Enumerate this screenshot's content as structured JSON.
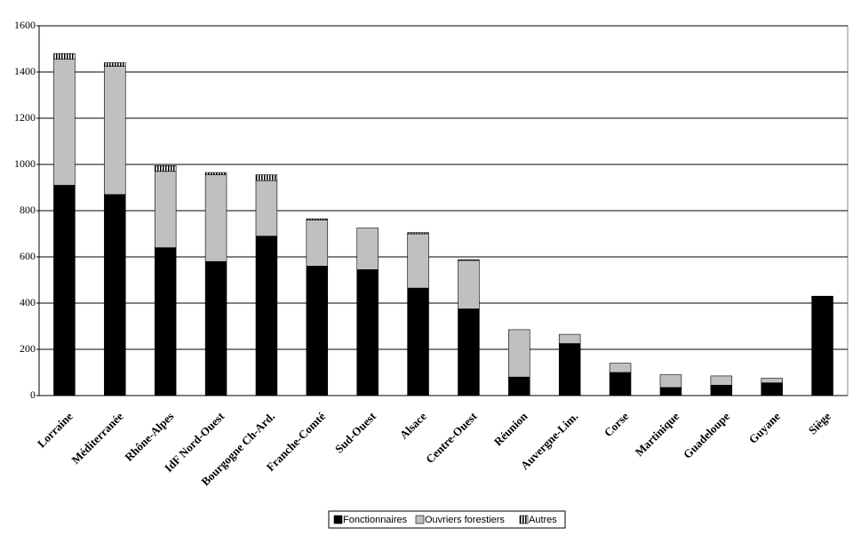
{
  "chart_data": {
    "type": "stacked-bar",
    "categories": [
      "Lorraine",
      "Méditerranée",
      "Rhône-Alpes",
      "IdF Nord-Ouest",
      "Bourgogne Ch-Ard.",
      "Franche-Comté",
      "Sud-Ouest",
      "Alsace",
      "Centre-Ouest",
      "Réunion",
      "Auvergne-Lim.",
      "Corse",
      "Martinique",
      "Guadeloupe",
      "Guyane",
      "Siège"
    ],
    "series": [
      {
        "name": "Fonctionnaires",
        "color": "#000000",
        "values": [
          910,
          870,
          640,
          580,
          690,
          560,
          545,
          465,
          375,
          80,
          225,
          100,
          35,
          45,
          55,
          430
        ]
      },
      {
        "name": "Ouvriers forestiers",
        "color": "#c0c0c0",
        "values": [
          545,
          555,
          330,
          375,
          240,
          200,
          180,
          235,
          210,
          205,
          40,
          40,
          55,
          40,
          20,
          0
        ]
      },
      {
        "name": "Autres",
        "color": "#000000",
        "pattern": "vertical-stripes",
        "values": [
          25,
          15,
          25,
          10,
          25,
          5,
          0,
          5,
          3,
          0,
          0,
          0,
          0,
          0,
          0,
          0
        ]
      }
    ],
    "ylim": [
      0,
      1600
    ],
    "yticks": [
      0,
      200,
      400,
      600,
      800,
      1000,
      1200,
      1400,
      1600
    ],
    "grid": true,
    "legend": "bottom"
  }
}
